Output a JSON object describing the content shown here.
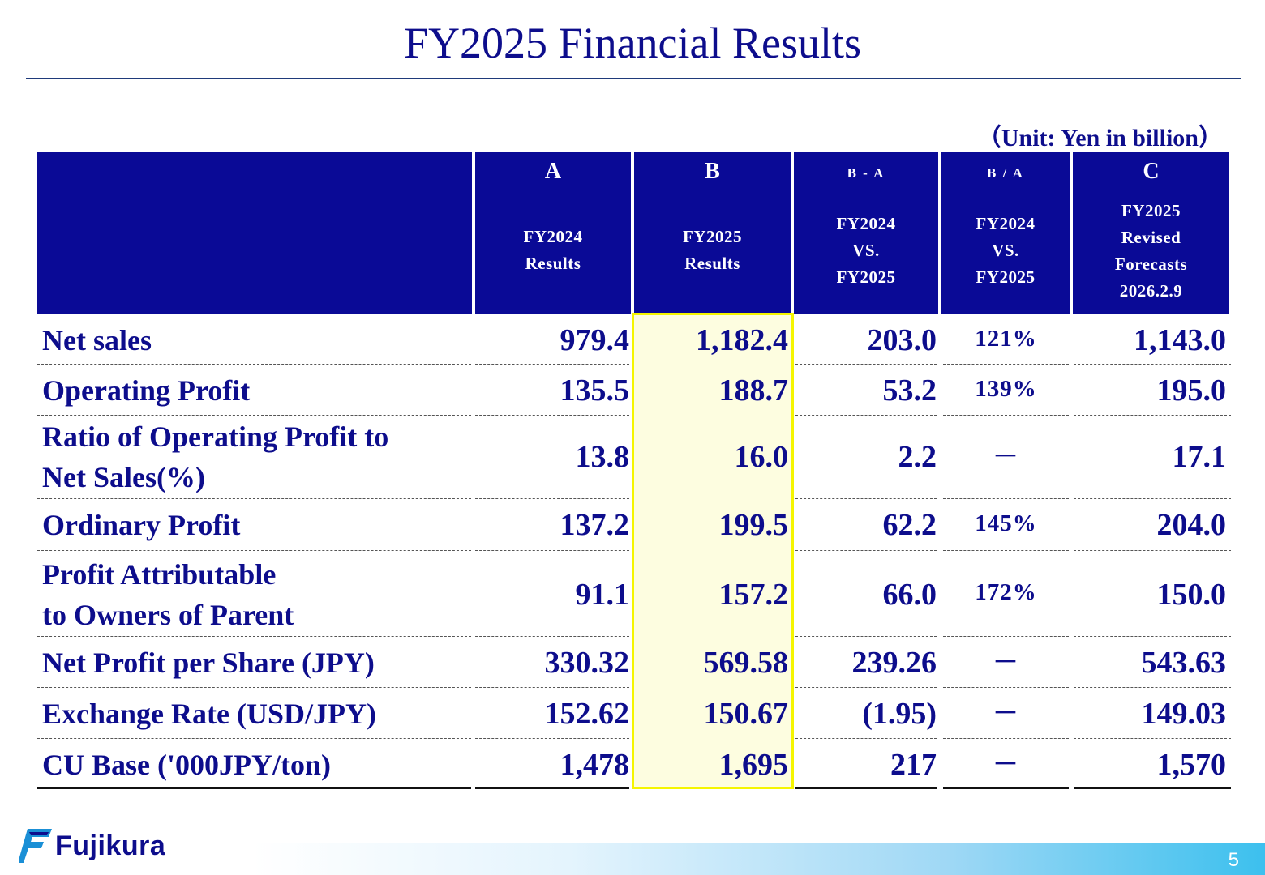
{
  "title": "FY2025 Financial Results",
  "unit": "（Unit: Yen in billion）",
  "columns": [
    {
      "letter": "A",
      "sub": "FY2024\nResults"
    },
    {
      "letter": "B",
      "sub": "FY2025\nResults"
    },
    {
      "letter": "B - A",
      "sub": "FY2024\nVS.\nFY2025"
    },
    {
      "letter": "B / A",
      "sub": "FY2024\nVS.\nFY2025"
    },
    {
      "letter": "C",
      "sub": "FY2025\nRevised\nForecasts\n2026.2.9"
    }
  ],
  "rows": [
    {
      "label": "Net sales",
      "a": "979.4",
      "b": "1,182.4",
      "diff": "203.0",
      "ratio": "121%",
      "c": "1,143.0"
    },
    {
      "label": "Operating Profit",
      "a": "135.5",
      "b": "188.7",
      "diff": "53.2",
      "ratio": "139%",
      "c": "195.0"
    },
    {
      "label": "Ratio of Operating Profit to\nNet Sales(%)",
      "a": "13.8",
      "b": "16.0",
      "diff": "2.2",
      "ratio": "－",
      "c": "17.1"
    },
    {
      "label": "Ordinary Profit",
      "a": "137.2",
      "b": "199.5",
      "diff": "62.2",
      "ratio": "145%",
      "c": "204.0"
    },
    {
      "label": "Profit Attributable\nto Owners of Parent",
      "a": "91.1",
      "b": "157.2",
      "diff": "66.0",
      "ratio": "172%",
      "c": "150.0"
    },
    {
      "label": "Net Profit per Share (JPY)",
      "a": "330.32",
      "b": "569.58",
      "diff": "239.26",
      "ratio": "－",
      "c": "543.63"
    },
    {
      "label": "Exchange Rate (USD/JPY)",
      "a": "152.62",
      "b": "150.67",
      "diff": "(1.95)",
      "ratio": "－",
      "c": "149.03"
    },
    {
      "label": "CU Base ('000JPY/ton)",
      "a": "1,478",
      "b": "1,695",
      "diff": "217",
      "ratio": "－",
      "c": "1,570"
    }
  ],
  "footer": {
    "brand": "Fujikura",
    "page": "5"
  },
  "colors": {
    "header_bg": "#0a0a96",
    "text": "#0d0d8c",
    "highlight_border": "#f5f500",
    "highlight_fill": "#fdfde0"
  }
}
